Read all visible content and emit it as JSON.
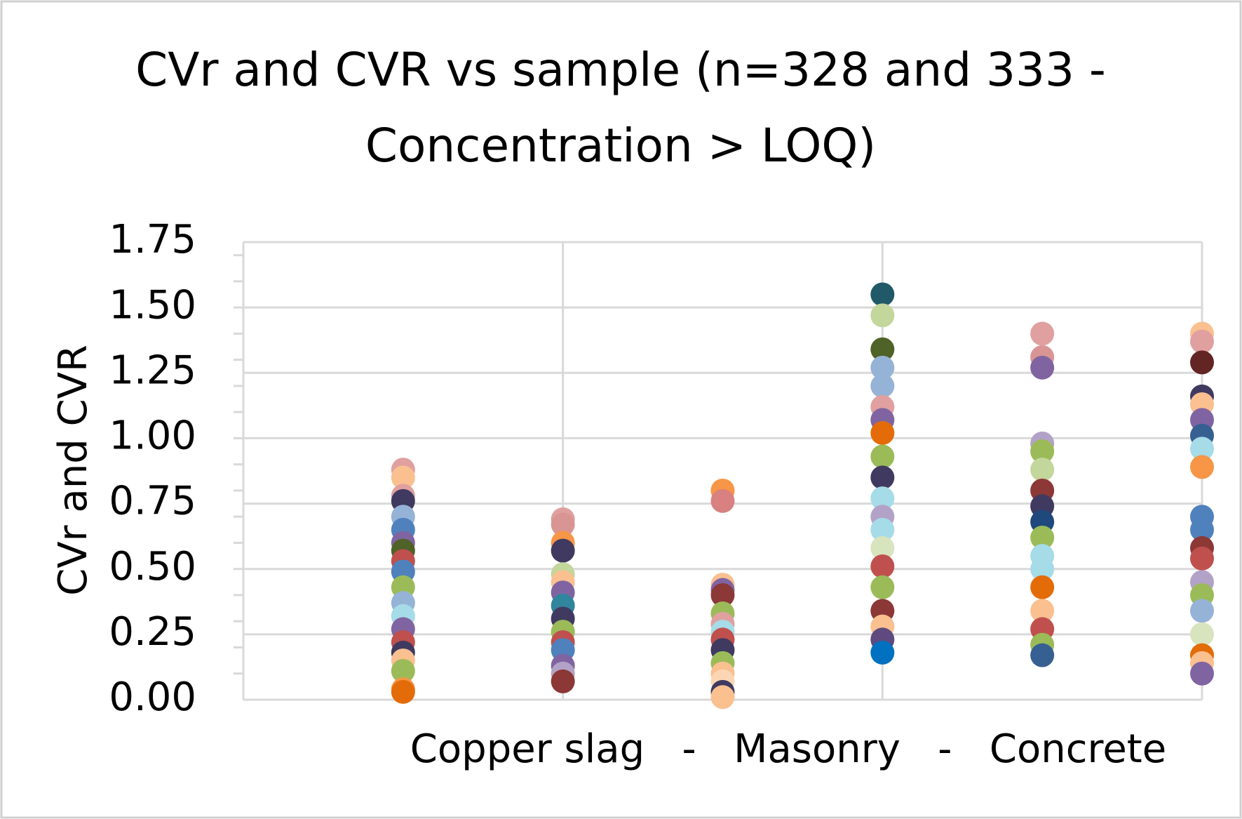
{
  "chart_data": {
    "type": "scatter",
    "title": "CVr and CVR vs sample (n=328 and 333 -",
    "title_line2": "Concentration > LOQ)",
    "y_label": "CVr and CVR",
    "x_label": "Copper slag   -   Masonry   -   Concrete",
    "xlim": [
      0,
      6
    ],
    "xticks": [
      0,
      2,
      4,
      6
    ],
    "ylim": [
      0,
      1.75
    ],
    "yticks": [
      {
        "value": 0,
        "label": "0.00"
      },
      {
        "value": 0.25,
        "label": "0.25"
      },
      {
        "value": 0.5,
        "label": "0.50"
      },
      {
        "value": 0.75,
        "label": "0.75"
      },
      {
        "value": 1,
        "label": "1.00"
      },
      {
        "value": 1.25,
        "label": "1.25"
      },
      {
        "value": 1.5,
        "label": "1.50"
      },
      {
        "value": 1.75,
        "label": "1.75"
      }
    ],
    "yminorticks": [
      0.1,
      0.2,
      0.3,
      0.4,
      0.5,
      0.6,
      0.7,
      0.8,
      0.9,
      1.0,
      1.1,
      1.2,
      1.3,
      1.4,
      1.5,
      1.6,
      1.7
    ],
    "grid": true,
    "series": [
      {
        "x": 1,
        "values": [
          0.88,
          0.85,
          0.78,
          0.76,
          0.7,
          0.65,
          0.6,
          0.57,
          0.53,
          0.49,
          0.43,
          0.37,
          0.32,
          0.27,
          0.22,
          0.18,
          0.15,
          0.11,
          0.04,
          0.03
        ],
        "colors": [
          "#e0a0a0",
          "#fac090",
          "#e0a0a0",
          "#403a60",
          "#95b3d7",
          "#4f81bd",
          "#8064a2",
          "#4f6228",
          "#c0504d",
          "#4f81bd",
          "#9bbb59",
          "#95b3d7",
          "#a6dbe8",
          "#8064a2",
          "#c0504d",
          "#403a60",
          "#fac090",
          "#9bbb59",
          "#f79646",
          "#e36c09"
        ]
      },
      {
        "x": 2,
        "values": [
          0.69,
          0.67,
          0.6,
          0.57,
          0.48,
          0.45,
          0.41,
          0.36,
          0.31,
          0.26,
          0.22,
          0.19,
          0.13,
          0.1,
          0.07
        ],
        "colors": [
          "#e0a0a0",
          "#d99594",
          "#f79646",
          "#403a60",
          "#c3d69b",
          "#fac090",
          "#8064a2",
          "#31859c",
          "#403a60",
          "#9bbb59",
          "#c0504d",
          "#4f81bd",
          "#8064a2",
          "#b3a2c7",
          "#8c3836"
        ]
      },
      {
        "x": 3,
        "values": [
          0.8,
          0.76,
          0.44,
          0.42,
          0.4,
          0.33,
          0.29,
          0.26,
          0.23,
          0.19,
          0.14,
          0.1,
          0.07,
          0.03,
          0.01
        ],
        "colors": [
          "#f79646",
          "#d98080",
          "#fac090",
          "#8064a2",
          "#8c3836",
          "#9bbb59",
          "#e0a0a0",
          "#a6dbe8",
          "#c0504d",
          "#403a60",
          "#9bbb59",
          "#fac090",
          "#fcd5b4",
          "#403a60",
          "#fac090"
        ]
      },
      {
        "x": 4,
        "values": [
          1.55,
          1.47,
          1.34,
          1.27,
          1.2,
          1.12,
          1.07,
          1.02,
          0.93,
          0.85,
          0.77,
          0.7,
          0.65,
          0.58,
          0.51,
          0.43,
          0.34,
          0.28,
          0.23,
          0.18
        ],
        "colors": [
          "#215968",
          "#c3d69b",
          "#4f6228",
          "#95b3d7",
          "#95b3d7",
          "#e0a0a0",
          "#8064a2",
          "#e36c09",
          "#9bbb59",
          "#403a60",
          "#a6dbe8",
          "#b3a2c7",
          "#a6dbe8",
          "#d7e4bd",
          "#c0504d",
          "#9bbb59",
          "#8c3836",
          "#fac090",
          "#5f4a80",
          "#0070c0"
        ]
      },
      {
        "x": 5,
        "values": [
          1.4,
          1.31,
          1.27,
          0.98,
          0.95,
          0.88,
          0.8,
          0.74,
          0.68,
          0.62,
          0.55,
          0.5,
          0.43,
          0.34,
          0.27,
          0.21,
          0.17
        ],
        "colors": [
          "#e0a0a0",
          "#d99594",
          "#8064a2",
          "#b3a2c7",
          "#9bbb59",
          "#c3d69b",
          "#8c3836",
          "#403a60",
          "#1f497d",
          "#9bbb59",
          "#a6dbe8",
          "#a6dbe8",
          "#e36c09",
          "#fac090",
          "#c0504d",
          "#9bbb59",
          "#376092"
        ]
      },
      {
        "x": 6,
        "values": [
          1.4,
          1.37,
          1.29,
          1.16,
          1.13,
          1.07,
          1.01,
          0.96,
          0.89,
          0.7,
          0.65,
          0.58,
          0.54,
          0.45,
          0.4,
          0.34,
          0.25,
          0.17,
          0.14,
          0.1
        ],
        "colors": [
          "#fac090",
          "#e0a0a0",
          "#632523",
          "#403a60",
          "#fac090",
          "#8064a2",
          "#376092",
          "#a6dbe8",
          "#f79646",
          "#4f81bd",
          "#4f81bd",
          "#8c3836",
          "#c0504d",
          "#b3a2c7",
          "#9bbb59",
          "#95b3d7",
          "#d7e4bd",
          "#e36c09",
          "#fac090",
          "#8064a2"
        ]
      }
    ]
  }
}
